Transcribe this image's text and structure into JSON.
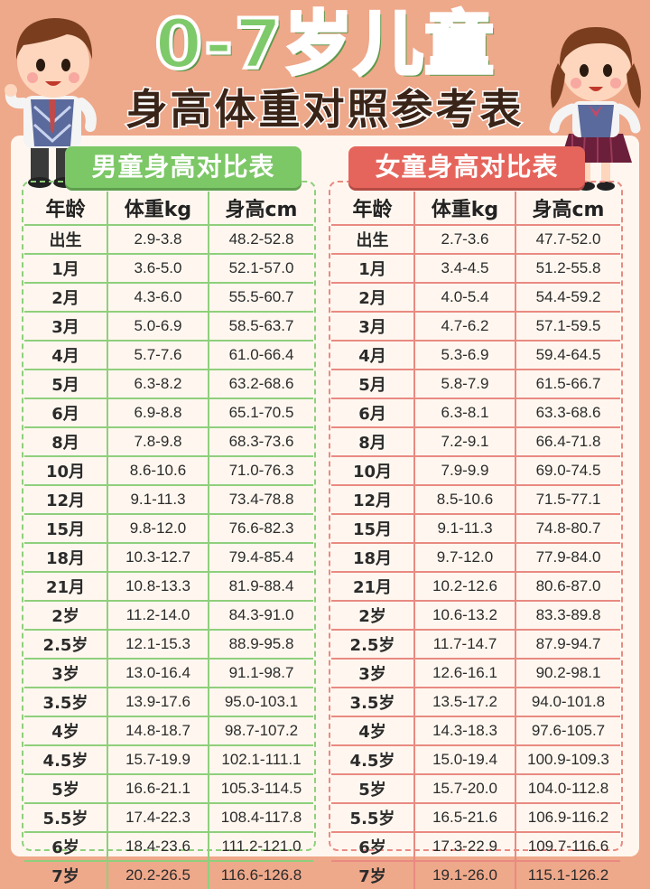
{
  "title": {
    "line1": "0-7岁儿童",
    "line2": "身高体重对照参考表"
  },
  "headers": {
    "age": "年龄",
    "weight": "体重kg",
    "height": "身高cm"
  },
  "boy": {
    "label": "男童身高对比表",
    "rows": [
      {
        "age": "出生",
        "weight": "2.9-3.8",
        "height": "48.2-52.8"
      },
      {
        "age": "1月",
        "weight": "3.6-5.0",
        "height": "52.1-57.0"
      },
      {
        "age": "2月",
        "weight": "4.3-6.0",
        "height": "55.5-60.7"
      },
      {
        "age": "3月",
        "weight": "5.0-6.9",
        "height": "58.5-63.7"
      },
      {
        "age": "4月",
        "weight": "5.7-7.6",
        "height": "61.0-66.4"
      },
      {
        "age": "5月",
        "weight": "6.3-8.2",
        "height": "63.2-68.6"
      },
      {
        "age": "6月",
        "weight": "6.9-8.8",
        "height": "65.1-70.5"
      },
      {
        "age": "8月",
        "weight": "7.8-9.8",
        "height": "68.3-73.6"
      },
      {
        "age": "10月",
        "weight": "8.6-10.6",
        "height": "71.0-76.3"
      },
      {
        "age": "12月",
        "weight": "9.1-11.3",
        "height": "73.4-78.8"
      },
      {
        "age": "15月",
        "weight": "9.8-12.0",
        "height": "76.6-82.3"
      },
      {
        "age": "18月",
        "weight": "10.3-12.7",
        "height": "79.4-85.4"
      },
      {
        "age": "21月",
        "weight": "10.8-13.3",
        "height": "81.9-88.4"
      },
      {
        "age": "2岁",
        "weight": "11.2-14.0",
        "height": "84.3-91.0"
      },
      {
        "age": "2.5岁",
        "weight": "12.1-15.3",
        "height": "88.9-95.8"
      },
      {
        "age": "3岁",
        "weight": "13.0-16.4",
        "height": "91.1-98.7"
      },
      {
        "age": "3.5岁",
        "weight": "13.9-17.6",
        "height": "95.0-103.1"
      },
      {
        "age": "4岁",
        "weight": "14.8-18.7",
        "height": "98.7-107.2"
      },
      {
        "age": "4.5岁",
        "weight": "15.7-19.9",
        "height": "102.1-111.1"
      },
      {
        "age": "5岁",
        "weight": "16.6-21.1",
        "height": "105.3-114.5"
      },
      {
        "age": "5.5岁",
        "weight": "17.4-22.3",
        "height": "108.4-117.8"
      },
      {
        "age": "6岁",
        "weight": "18.4-23.6",
        "height": "111.2-121.0"
      },
      {
        "age": "7岁",
        "weight": "20.2-26.5",
        "height": "116.6-126.8"
      }
    ]
  },
  "girl": {
    "label": "女童身高对比表",
    "rows": [
      {
        "age": "出生",
        "weight": "2.7-3.6",
        "height": "47.7-52.0"
      },
      {
        "age": "1月",
        "weight": "3.4-4.5",
        "height": "51.2-55.8"
      },
      {
        "age": "2月",
        "weight": "4.0-5.4",
        "height": "54.4-59.2"
      },
      {
        "age": "3月",
        "weight": "4.7-6.2",
        "height": "57.1-59.5"
      },
      {
        "age": "4月",
        "weight": "5.3-6.9",
        "height": "59.4-64.5"
      },
      {
        "age": "5月",
        "weight": "5.8-7.9",
        "height": "61.5-66.7"
      },
      {
        "age": "6月",
        "weight": "6.3-8.1",
        "height": "63.3-68.6"
      },
      {
        "age": "8月",
        "weight": "7.2-9.1",
        "height": "66.4-71.8"
      },
      {
        "age": "10月",
        "weight": "7.9-9.9",
        "height": "69.0-74.5"
      },
      {
        "age": "12月",
        "weight": "8.5-10.6",
        "height": "71.5-77.1"
      },
      {
        "age": "15月",
        "weight": "9.1-11.3",
        "height": "74.8-80.7"
      },
      {
        "age": "18月",
        "weight": "9.7-12.0",
        "height": "77.9-84.0"
      },
      {
        "age": "21月",
        "weight": "10.2-12.6",
        "height": "80.6-87.0"
      },
      {
        "age": "2岁",
        "weight": "10.6-13.2",
        "height": "83.3-89.8"
      },
      {
        "age": "2.5岁",
        "weight": "11.7-14.7",
        "height": "87.9-94.7"
      },
      {
        "age": "3岁",
        "weight": "12.6-16.1",
        "height": "90.2-98.1"
      },
      {
        "age": "3.5岁",
        "weight": "13.5-17.2",
        "height": "94.0-101.8"
      },
      {
        "age": "4岁",
        "weight": "14.3-18.3",
        "height": "97.6-105.7"
      },
      {
        "age": "4.5岁",
        "weight": "15.0-19.4",
        "height": "100.9-109.3"
      },
      {
        "age": "5岁",
        "weight": "15.7-20.0",
        "height": "104.0-112.8"
      },
      {
        "age": "5.5岁",
        "weight": "16.5-21.6",
        "height": "106.9-116.2"
      },
      {
        "age": "6岁",
        "weight": "17.3-22.9",
        "height": "109.7-116.6"
      },
      {
        "age": "7岁",
        "weight": "19.1-26.0",
        "height": "115.1-126.2"
      }
    ]
  },
  "illustrations": {
    "left": "boy-cartoon-icon",
    "right": "girl-cartoon-icon"
  },
  "colors": {
    "background": "#eea88a",
    "boy_accent": "#7cc766",
    "girl_accent": "#e5655c",
    "card": "#fff7ef"
  }
}
